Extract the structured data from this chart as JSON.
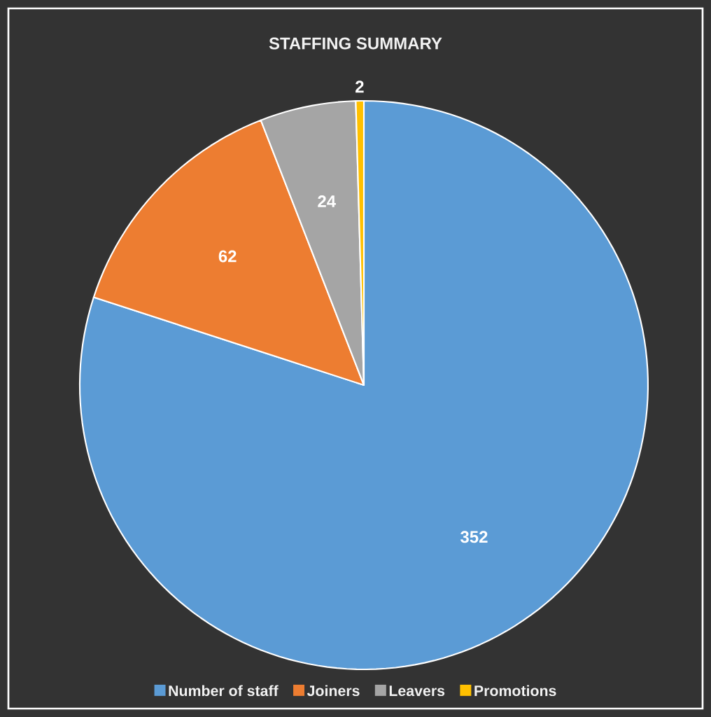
{
  "chart_data": {
    "type": "pie",
    "title": "STAFFING SUMMARY",
    "categories": [
      "Number of staff",
      "Joiners",
      "Leavers",
      "Promotions"
    ],
    "values": [
      352,
      62,
      24,
      2
    ],
    "colors": [
      "#5b9bd5",
      "#ed7d31",
      "#a5a5a5",
      "#ffc000"
    ],
    "data_labels": true,
    "legend": "bottom"
  }
}
